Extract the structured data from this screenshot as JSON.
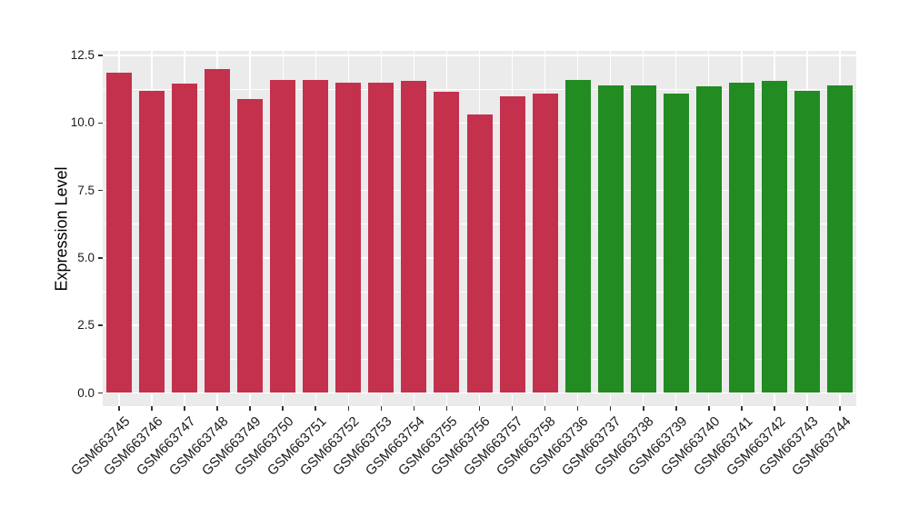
{
  "chart_data": {
    "type": "bar",
    "title": "",
    "xlabel": "",
    "ylabel": "Expression Level",
    "categories": [
      "GSM663745",
      "GSM663746",
      "GSM663747",
      "GSM663748",
      "GSM663749",
      "GSM663750",
      "GSM663751",
      "GSM663752",
      "GSM663753",
      "GSM663754",
      "GSM663755",
      "GSM663756",
      "GSM663757",
      "GSM663758",
      "GSM663736",
      "GSM663737",
      "GSM663738",
      "GSM663739",
      "GSM663740",
      "GSM663741",
      "GSM663742",
      "GSM663743",
      "GSM663744"
    ],
    "values": [
      11.85,
      11.2,
      11.45,
      12.0,
      10.9,
      11.6,
      11.6,
      11.5,
      11.5,
      11.55,
      11.15,
      10.3,
      11.0,
      11.1,
      11.6,
      11.4,
      11.4,
      11.1,
      11.35,
      11.5,
      11.55,
      11.2,
      11.4
    ],
    "bar_groups": [
      {
        "name": "group-red",
        "color": "#C3314D",
        "count": 14
      },
      {
        "name": "group-green",
        "color": "#228B22",
        "count": 9
      }
    ],
    "y_ticks": {
      "values": [
        0,
        2.5,
        5,
        7.5,
        10,
        12.5
      ],
      "labels": [
        "0.0",
        "2.5",
        "5.0",
        "7.5",
        "10.0",
        "12.5"
      ]
    },
    "y_minor_ticks": [
      1.25,
      3.75,
      6.25,
      8.75,
      11.25
    ],
    "ylim": [
      0,
      12.67
    ],
    "grid": "white major+minor horizontal lines and vertical lines at bar centers on gray panel",
    "legend": "none",
    "styles": {
      "plot_bg": "#EBEBEB",
      "grid_color": "#FFFFFF",
      "tick_color": "#333333",
      "text_color": "#1A1A1A",
      "page_bg": "#FFFFFF"
    }
  }
}
